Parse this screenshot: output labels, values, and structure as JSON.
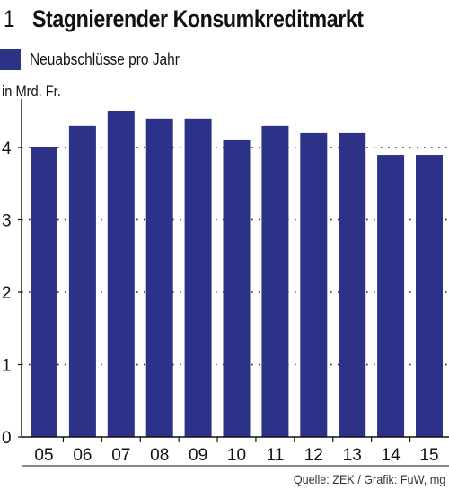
{
  "header": {
    "number": "1",
    "title": "Stagnierender Konsumkreditmarkt"
  },
  "unit_label": "in Mrd. Fr.",
  "source": "Quelle: ZEK / Grafik: FuW, mg",
  "colors": {
    "bar": "#2b3288",
    "axis": "#111111",
    "grid": "#222222"
  },
  "chart_data": {
    "type": "bar",
    "categories": [
      "05",
      "06",
      "07",
      "08",
      "09",
      "10",
      "11",
      "12",
      "13",
      "14",
      "15"
    ],
    "series": [
      {
        "name": "Neuabschlüsse pro Jahr",
        "values": [
          4.0,
          4.3,
          4.5,
          4.4,
          4.4,
          4.1,
          4.3,
          4.2,
          4.2,
          3.9,
          3.9
        ]
      }
    ],
    "yticks": [
      0,
      1,
      2,
      3,
      4
    ],
    "ylim": [
      0,
      4.75
    ],
    "ylabel": "in Mrd. Fr.",
    "grid": true,
    "legend_position": "top-left"
  }
}
